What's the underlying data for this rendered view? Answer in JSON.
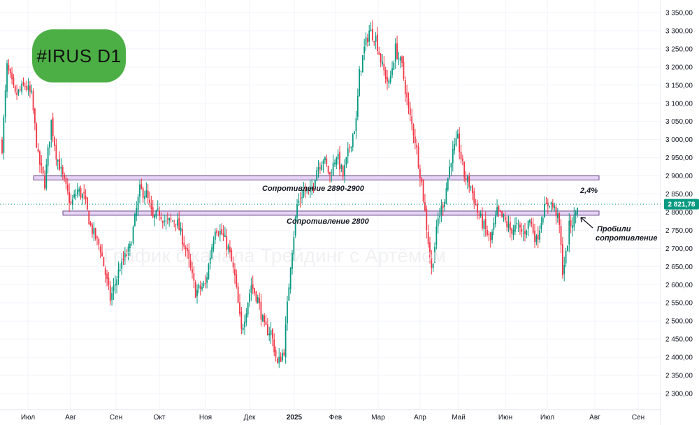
{
  "chart_data": {
    "type": "candlestick",
    "title": "#IRUS D1",
    "watermark": "График с канала Трейдинг с Артёмом",
    "y_axis": {
      "min": 2275,
      "max": 3380,
      "ticks": [
        2300,
        2350,
        2400,
        2450,
        2500,
        2550,
        2600,
        2650,
        2700,
        2750,
        2800,
        2850,
        2900,
        2950,
        3000,
        3050,
        3100,
        3150,
        3200,
        3250,
        3300,
        3350
      ],
      "tick_labels": [
        "2 300,00",
        "2 350,00",
        "2 400,00",
        "2 450,00",
        "2 500,00",
        "2 550,00",
        "2 600,00",
        "2 650,00",
        "2 700,00",
        "2 750,00",
        "2 800,00",
        "2 850,00",
        "2 900,00",
        "2 950,00",
        "3 000,00",
        "3 050,00",
        "3 100,00",
        "3 150,00",
        "3 200,00",
        "3 250,00",
        "3 300,00",
        "3 350,00"
      ]
    },
    "x_axis": {
      "labels": [
        "Июл",
        "Авг",
        "Сен",
        "Окт",
        "Ноя",
        "Дек",
        "2025",
        "Фев",
        "Мар",
        "Апр",
        "Май",
        "Июн",
        "Июл",
        "Авг",
        "Сен"
      ],
      "bold_label": "2025"
    },
    "last_price": 2821.78,
    "last_price_label": "2 821,78",
    "colors": {
      "up": "#089981",
      "down": "#f23645",
      "zone_fill": "#e6d3f5",
      "zone_border": "#6c4a8a",
      "badge": "#4caf45",
      "price_tag": "#089981"
    },
    "resistance_zones": [
      {
        "low": 2890,
        "high": 2900,
        "label": "Сопротивление 2890-2900"
      },
      {
        "low": 2797,
        "high": 2803,
        "label": "Сопротивление 2800"
      }
    ],
    "annotations": {
      "percent": "2,4%",
      "breakout_line1": "Пробили",
      "breakout_line2": "сопротивление"
    },
    "anchors": [
      [
        0,
        2980
      ],
      [
        3,
        3200
      ],
      [
        8,
        3120
      ],
      [
        14,
        3150
      ],
      [
        18,
        3120
      ],
      [
        22,
        2950
      ],
      [
        26,
        2880
      ],
      [
        30,
        3050
      ],
      [
        33,
        2960
      ],
      [
        38,
        2880
      ],
      [
        42,
        2820
      ],
      [
        46,
        2860
      ],
      [
        50,
        2840
      ],
      [
        54,
        2760
      ],
      [
        60,
        2700
      ],
      [
        66,
        2560
      ],
      [
        72,
        2650
      ],
      [
        78,
        2700
      ],
      [
        84,
        2860
      ],
      [
        88,
        2850
      ],
      [
        92,
        2780
      ],
      [
        96,
        2800
      ],
      [
        100,
        2770
      ],
      [
        106,
        2780
      ],
      [
        112,
        2700
      ],
      [
        118,
        2580
      ],
      [
        124,
        2600
      ],
      [
        130,
        2760
      ],
      [
        134,
        2740
      ],
      [
        138,
        2700
      ],
      [
        142,
        2620
      ],
      [
        146,
        2470
      ],
      [
        152,
        2600
      ],
      [
        156,
        2560
      ],
      [
        160,
        2480
      ],
      [
        164,
        2470
      ],
      [
        168,
        2380
      ],
      [
        172,
        2420
      ],
      [
        176,
        2660
      ],
      [
        180,
        2820
      ],
      [
        184,
        2860
      ],
      [
        188,
        2850
      ],
      [
        192,
        2920
      ],
      [
        196,
        2950
      ],
      [
        200,
        2900
      ],
      [
        204,
        2960
      ],
      [
        208,
        2900
      ],
      [
        212,
        2980
      ],
      [
        216,
        3050
      ],
      [
        218,
        3180
      ],
      [
        221,
        3250
      ],
      [
        224,
        3300
      ],
      [
        228,
        3280
      ],
      [
        232,
        3200
      ],
      [
        236,
        3150
      ],
      [
        240,
        3250
      ],
      [
        244,
        3200
      ],
      [
        248,
        3080
      ],
      [
        252,
        3000
      ],
      [
        256,
        2880
      ],
      [
        260,
        2720
      ],
      [
        262,
        2640
      ],
      [
        266,
        2780
      ],
      [
        270,
        2840
      ],
      [
        274,
        2950
      ],
      [
        278,
        3000
      ],
      [
        282,
        2900
      ],
      [
        286,
        2870
      ],
      [
        290,
        2800
      ],
      [
        294,
        2760
      ],
      [
        298,
        2720
      ],
      [
        302,
        2800
      ],
      [
        306,
        2780
      ],
      [
        310,
        2750
      ],
      [
        314,
        2760
      ],
      [
        318,
        2740
      ],
      [
        322,
        2780
      ],
      [
        326,
        2720
      ],
      [
        330,
        2800
      ],
      [
        334,
        2830
      ],
      [
        338,
        2800
      ],
      [
        340,
        2760
      ],
      [
        342,
        2640
      ],
      [
        344,
        2680
      ],
      [
        346,
        2760
      ],
      [
        349,
        2780
      ],
      [
        351,
        2821
      ]
    ]
  }
}
